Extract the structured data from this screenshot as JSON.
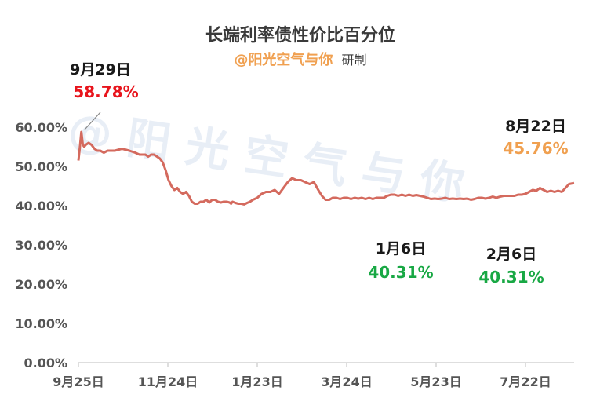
{
  "colors": {
    "line": "#d46a5e",
    "brand": "#f0a050",
    "red": "#e8141c",
    "green": "#18a844",
    "orange": "#f0a050"
  },
  "watermark": "@ 阳 光 空 气 与 你",
  "chart_data": {
    "type": "line",
    "title": "长端利率债性价比百分位",
    "subtitle_brand": "@阳光空气与你",
    "subtitle_rest": "研制",
    "xlabel": "",
    "ylabel": "",
    "ylim": [
      0,
      65
    ],
    "y_ticks": [
      "0.00%",
      "10.00%",
      "20.00%",
      "30.00%",
      "40.00%",
      "50.00%",
      "60.00%"
    ],
    "x_ticks": [
      "9月25日",
      "11月24日",
      "1月23日",
      "3月24日",
      "5月23日",
      "7月22日"
    ],
    "series": [
      {
        "x": [
          0,
          2,
          4,
          6,
          8,
          10,
          14,
          18,
          22,
          26,
          30,
          35,
          40,
          50,
          60,
          70,
          78,
          84,
          88,
          92,
          96,
          100,
          104,
          108,
          112,
          116,
          120,
          124,
          128,
          132,
          136,
          140,
          144,
          148,
          152,
          156,
          160,
          164,
          168,
          172,
          176,
          180,
          184,
          188,
          192,
          196,
          200,
          204,
          208,
          210,
          212,
          216,
          220,
          224,
          228,
          232,
          236,
          240,
          246,
          252,
          258,
          264,
          270,
          276,
          282,
          288,
          294,
          300,
          306,
          312,
          318,
          324,
          330,
          335,
          340,
          345,
          350,
          355,
          360,
          365,
          370,
          375,
          380,
          385,
          390,
          395,
          400,
          405,
          410,
          415,
          420,
          425,
          430,
          435,
          440,
          445,
          450,
          455,
          460,
          465,
          470,
          475,
          480,
          485,
          490,
          495,
          500,
          505,
          510,
          515,
          520,
          525,
          530,
          535,
          540,
          545,
          550,
          555,
          560,
          565,
          570,
          575,
          580,
          585,
          590,
          595,
          600,
          605,
          610,
          615,
          620,
          625,
          630,
          635,
          640,
          645,
          650,
          655,
          660,
          665,
          670,
          675,
          682
        ],
        "values": [
          51.5,
          55,
          58.78,
          55.5,
          55,
          55.5,
          56,
          55.5,
          54.5,
          54,
          54,
          53.5,
          54,
          54,
          54.5,
          54,
          53.5,
          53,
          53,
          53,
          52.5,
          53,
          53,
          52.5,
          52,
          51,
          49,
          46.5,
          45,
          44,
          44.5,
          43.5,
          43,
          43.5,
          42.5,
          41,
          40.5,
          40.5,
          41,
          41,
          41.5,
          40.8,
          41.5,
          41.5,
          41,
          40.8,
          41,
          41,
          40.8,
          40.5,
          41,
          40.7,
          40.5,
          40.5,
          40.31,
          40.7,
          41,
          41.5,
          42,
          43,
          43.5,
          43.5,
          44,
          43,
          44.5,
          46,
          47,
          46.5,
          46.5,
          46,
          45.5,
          46,
          44,
          42.5,
          41.5,
          41.5,
          42,
          42,
          41.7,
          42,
          42,
          41.7,
          42,
          41.8,
          42,
          41.7,
          42,
          41.7,
          42,
          42,
          42,
          42.5,
          42.8,
          42.8,
          42.5,
          42.8,
          42.5,
          42.8,
          42.5,
          42.7,
          42.5,
          42.3,
          42,
          41.7,
          41.8,
          41.7,
          41.8,
          42,
          41.7,
          41.8,
          41.7,
          41.8,
          41.7,
          41.8,
          41.5,
          41.7,
          42,
          42,
          41.8,
          42,
          42.3,
          42,
          42.3,
          42.5,
          42.5,
          42.5,
          42.5,
          42.8,
          42.8,
          43,
          43.5,
          44,
          43.8,
          44.5,
          44,
          43.5,
          43.8,
          43.5,
          43.8,
          43.5,
          44.5,
          45.5,
          45.76
        ]
      }
    ],
    "annotations": [
      {
        "date": "9月29日",
        "value": "58.78%",
        "color": "red"
      },
      {
        "date": "1月6日",
        "value": "40.31%",
        "color": "green"
      },
      {
        "date": "2月6日",
        "value": "40.31%",
        "color": "green"
      },
      {
        "date": "8月22日",
        "value": "45.76%",
        "color": "orange"
      }
    ]
  }
}
